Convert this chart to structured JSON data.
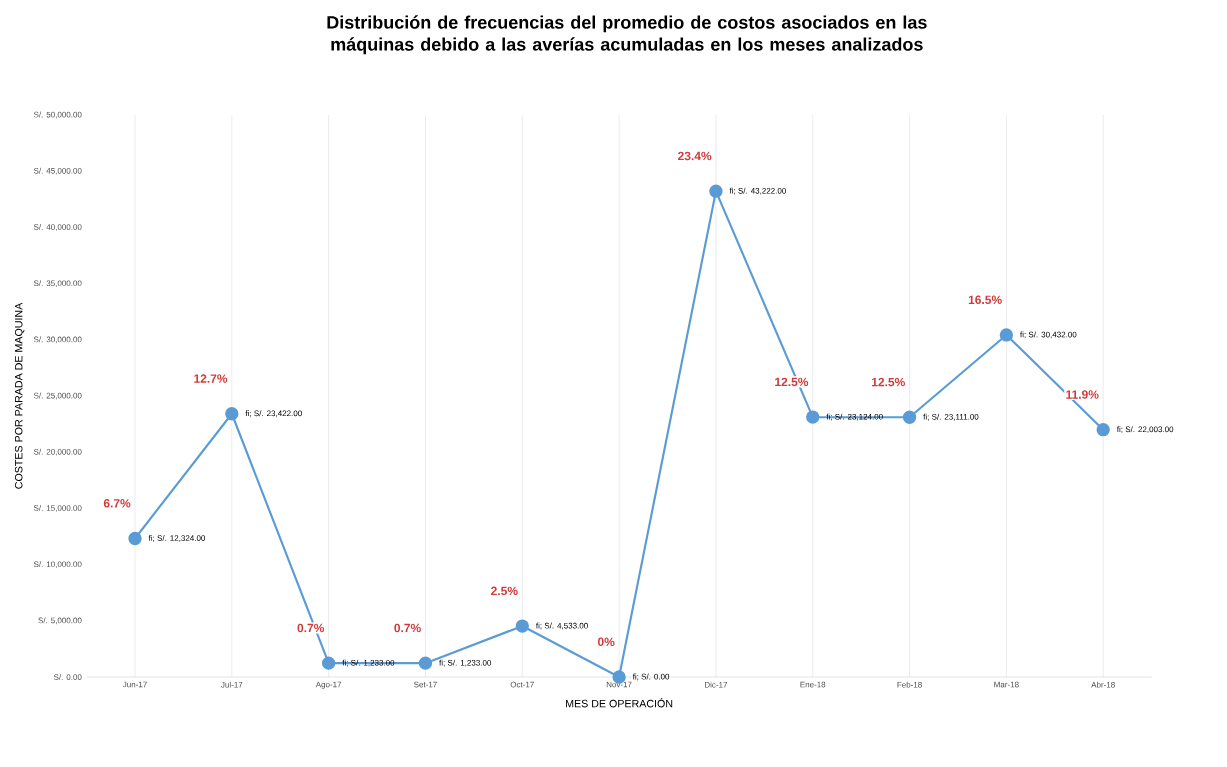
{
  "chart_data": {
    "type": "line",
    "title": "Distribución de frecuencias del promedio de costos asociados en las máquinas debido a las averías acumuladas en los meses analizados",
    "xlabel": "MES DE OPERACIÓN",
    "ylabel": "COSTES POR PARADA DE MAQUINA",
    "categories": [
      "Jun-17",
      "Jul-17",
      "Ago-17",
      "Set-17",
      "Oct-17",
      "Nov-17",
      "Dic-17",
      "Ene-18",
      "Feb-18",
      "Mar-18",
      "Abr-18"
    ],
    "series": [
      {
        "color": "#5b9bd5",
        "values": [
          12324,
          23422,
          1233,
          1233,
          4533,
          0,
          43222,
          23124,
          23111,
          30432,
          22003
        ],
        "value_labels": [
          "fi; S/. 12,324.00",
          "fi; S/. 23,422.00",
          "fi; S/. 1,233.00",
          "fi; S/. 1,233.00",
          "fi; S/. 4,533.00",
          "fi; S/. 0.00",
          "fi; S/. 43,222.00",
          "fi; S/. 23,124.00",
          "fi; S/. 23,111.00",
          "fi; S/. 30,432.00",
          "fi; S/. 22,003.00"
        ]
      }
    ],
    "ylim": [
      0,
      50000
    ],
    "yticks": [
      {
        "value": 0,
        "label": "S/. 0.00"
      },
      {
        "value": 5000,
        "label": "S/. 5,000.00"
      },
      {
        "value": 10000,
        "label": "S/. 10,000.00"
      },
      {
        "value": 15000,
        "label": "S/. 15,000.00"
      },
      {
        "value": 20000,
        "label": "S/. 20,000.00"
      },
      {
        "value": 25000,
        "label": "S/. 25,000.00"
      },
      {
        "value": 30000,
        "label": "S/. 30,000.00"
      },
      {
        "value": 35000,
        "label": "S/. 35,000.00"
      },
      {
        "value": 40000,
        "label": "S/. 40,000.00"
      },
      {
        "value": 45000,
        "label": "S/. 45,000.00"
      },
      {
        "value": 50000,
        "label": "S/. 50,000.00"
      }
    ],
    "annotations": [
      {
        "text": "6.7%",
        "x": "Jun-17",
        "y": 12324
      },
      {
        "text": "12.7%",
        "x": "Jul-17",
        "y": 23422
      },
      {
        "text": "0.7%",
        "x": "Ago-17",
        "y": 1233
      },
      {
        "text": "0.7%",
        "x": "Set-17",
        "y": 1233
      },
      {
        "text": "2.5%",
        "x": "Oct-17",
        "y": 4533
      },
      {
        "text": "0%",
        "x": "Nov-17",
        "y": 0
      },
      {
        "text": "23.4%",
        "x": "Dic-17",
        "y": 43222
      },
      {
        "text": "12.5%",
        "x": "Ene-18",
        "y": 23124
      },
      {
        "text": "12.5%",
        "x": "Feb-18",
        "y": 23111
      },
      {
        "text": "16.5%",
        "x": "Mar-18",
        "y": 30432
      },
      {
        "text": "11.9%",
        "x": "Abr-18",
        "y": 22003
      }
    ],
    "grid": "x",
    "marker": "circle",
    "line_style": "solid"
  }
}
